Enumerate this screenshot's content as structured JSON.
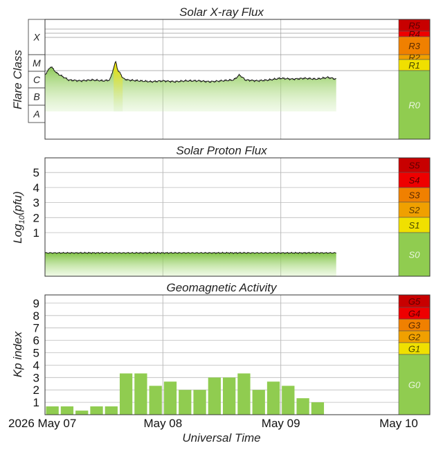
{
  "x_axis": {
    "label": "Universal Time",
    "ticks": [
      "2026 May 07",
      "May 08",
      "May 09",
      "May 10"
    ],
    "range_days": [
      0,
      3
    ]
  },
  "panels": {
    "xray": {
      "title": "Solar X-ray Flux",
      "ylabel": "Flare Class",
      "classes": [
        "X",
        "M",
        "C",
        "B",
        "A"
      ],
      "scale": [
        {
          "label": "R5",
          "color": "#c80000",
          "text": "#5a0000"
        },
        {
          "label": "R4",
          "color": "#ee0000",
          "text": "#5a0000"
        },
        {
          "label": "R3",
          "color": "#f08000",
          "text": "#5a2a00"
        },
        {
          "label": "R2",
          "color": "#f0a000",
          "text": "#5a3a00"
        },
        {
          "label": "R1",
          "color": "#f0e000",
          "text": "#4a4a00"
        },
        {
          "label": "R0",
          "color": "#90cc50",
          "text": "#e8f5dc"
        }
      ]
    },
    "proton": {
      "title": "Solar Proton Flux",
      "ylabel": "Log10(pfu)",
      "yticks": [
        "1",
        "2",
        "3",
        "4",
        "5"
      ],
      "scale": [
        {
          "label": "S5",
          "color": "#c80000",
          "text": "#5a0000"
        },
        {
          "label": "S4",
          "color": "#ee0000",
          "text": "#5a0000"
        },
        {
          "label": "S3",
          "color": "#f08000",
          "text": "#5a2a00"
        },
        {
          "label": "S2",
          "color": "#f0a000",
          "text": "#5a3a00"
        },
        {
          "label": "S1",
          "color": "#f0e000",
          "text": "#4a4a00"
        },
        {
          "label": "S0",
          "color": "#90cc50",
          "text": "#e8f5dc"
        }
      ]
    },
    "geomag": {
      "title": "Geomagnetic Activity",
      "ylabel": "Kp index",
      "yticks": [
        "1",
        "2",
        "3",
        "4",
        "5",
        "6",
        "7",
        "8",
        "9"
      ],
      "scale": [
        {
          "label": "G5",
          "color": "#c80000",
          "text": "#5a0000"
        },
        {
          "label": "G4",
          "color": "#ee0000",
          "text": "#5a0000"
        },
        {
          "label": "G3",
          "color": "#f08000",
          "text": "#5a2a00"
        },
        {
          "label": "G2",
          "color": "#f0a000",
          "text": "#5a3a00"
        },
        {
          "label": "G1",
          "color": "#f0e000",
          "text": "#4a4a00"
        },
        {
          "label": "G0",
          "color": "#90cc50",
          "text": "#e8f5dc"
        }
      ]
    }
  },
  "chart_data": [
    {
      "type": "area",
      "title": "Solar X-ray Flux",
      "ylabel": "Flare Class",
      "y_scale": "log",
      "x_units": "days since 2026 May 07 00:00 UT",
      "x": [
        0.0,
        0.05,
        0.1,
        0.15,
        0.2,
        0.3,
        0.4,
        0.5,
        0.55,
        0.6,
        0.62,
        0.64,
        0.66,
        0.7,
        0.8,
        0.9,
        1.0,
        1.1,
        1.2,
        1.3,
        1.4,
        1.5,
        1.6,
        1.65,
        1.7,
        1.8,
        1.9,
        2.0,
        2.1,
        2.2,
        2.3,
        2.4,
        2.47
      ],
      "class_level": [
        3.8,
        4.3,
        3.9,
        3.7,
        3.5,
        3.45,
        3.5,
        3.45,
        3.5,
        4.6,
        4.0,
        3.9,
        3.6,
        3.5,
        3.45,
        3.4,
        3.45,
        3.4,
        3.45,
        3.45,
        3.4,
        3.45,
        3.5,
        3.8,
        3.5,
        3.45,
        3.5,
        3.6,
        3.55,
        3.6,
        3.55,
        3.65,
        3.55
      ],
      "class_level_note": "1=A,2=B,3=C,4=M,5=X (log10 decade above A)"
    },
    {
      "type": "area",
      "title": "Solar Proton Flux",
      "ylabel": "Log10(pfu)",
      "x": [
        0.0,
        0.5,
        1.0,
        1.5,
        2.0,
        2.47
      ],
      "values": [
        -0.35,
        -0.35,
        -0.33,
        -0.35,
        -0.34,
        -0.35
      ],
      "ylim": [
        -0.6,
        5.8
      ]
    },
    {
      "type": "bar",
      "title": "Geomagnetic Activity",
      "ylabel": "Kp index",
      "ylim": [
        0,
        9.67
      ],
      "x_bins_start_days": [
        0.0,
        0.125,
        0.25,
        0.375,
        0.5,
        0.625,
        0.75,
        0.875,
        1.0,
        1.125,
        1.25,
        1.375,
        1.5,
        1.625,
        1.75,
        1.875,
        2.0,
        2.125,
        2.25,
        2.375
      ],
      "values": [
        0.67,
        0.67,
        0.33,
        0.67,
        0.67,
        3.33,
        3.33,
        2.33,
        2.67,
        2.0,
        2.0,
        3.0,
        3.0,
        3.33,
        2.0,
        2.67,
        2.33,
        1.33,
        1.0,
        0.0
      ],
      "bar_color": "#90cc50"
    }
  ]
}
